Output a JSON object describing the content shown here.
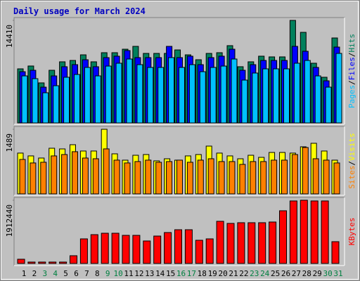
{
  "chart_data": [
    {
      "type": "bar",
      "title": "Daily usage for March 2024",
      "legend_separator": "/",
      "ylim": [
        0,
        14410
      ],
      "yticks": [
        14410
      ],
      "series": [
        {
          "name": "Pages",
          "color": "#00c0ff",
          "values": [
            6610,
            6220,
            4240,
            5230,
            6420,
            6810,
            7800,
            6610,
            7990,
            8390,
            8980,
            8190,
            7800,
            7800,
            9180,
            7800,
            8190,
            7200,
            7800,
            7990,
            8980,
            6020,
            7010,
            7600,
            7600,
            7600,
            8390,
            8780,
            6610,
            5030,
            9770
          ]
        },
        {
          "name": "Files",
          "color": "#0000ff",
          "values": [
            7200,
            7400,
            5030,
            6610,
            7900,
            8190,
            8880,
            7900,
            9180,
            9380,
            10170,
            9180,
            9180,
            9180,
            10760,
            9180,
            9380,
            8190,
            9180,
            9380,
            10360,
            7400,
            8190,
            8780,
            8780,
            8780,
            10760,
            10070,
            7800,
            5920,
            10660
          ]
        },
        {
          "name": "Hits",
          "color": "#00805c",
          "values": [
            7600,
            8000,
            5630,
            7400,
            8590,
            8780,
            9570,
            8590,
            9870,
            9870,
            10360,
            10760,
            9770,
            9770,
            9770,
            10260,
            9570,
            8880,
            9770,
            9870,
            10860,
            7900,
            8590,
            9380,
            9280,
            9280,
            14410,
            12730,
            8390,
            6420,
            11940
          ]
        }
      ]
    },
    {
      "type": "bar",
      "legend_separator": "/",
      "ylim": [
        0,
        1489
      ],
      "yticks": [
        1489
      ],
      "series": [
        {
          "name": "Sites",
          "color": "#ff8000",
          "values": [
            794,
            713,
            729,
            875,
            907,
            972,
            826,
            810,
            1037,
            778,
            713,
            745,
            778,
            729,
            745,
            778,
            729,
            778,
            810,
            745,
            745,
            680,
            745,
            745,
            778,
            778,
            907,
            1069,
            810,
            778,
            713
          ]
        },
        {
          "name": "Visits",
          "color": "#ffff00",
          "values": [
            940,
            875,
            826,
            1052,
            1036,
            1133,
            988,
            988,
            1489,
            923,
            777,
            890,
            907,
            761,
            809,
            777,
            875,
            907,
            1101,
            940,
            875,
            809,
            890,
            842,
            955,
            955,
            940,
            1085,
            1166,
            988,
            777
          ]
        }
      ]
    },
    {
      "type": "bar",
      "ylim": [
        0,
        1912440
      ],
      "yticks": [
        1912440
      ],
      "categories": [
        "1",
        "2",
        "3",
        "4",
        "5",
        "6",
        "7",
        "8",
        "9",
        "10",
        "11",
        "12",
        "13",
        "14",
        "15",
        "16",
        "17",
        "18",
        "19",
        "20",
        "21",
        "22",
        "23",
        "24",
        "25",
        "26",
        "27",
        "28",
        "29",
        "30",
        "31"
      ],
      "category_colors": [
        "#000000",
        "#000000",
        "#008040",
        "#008040",
        "#000000",
        "#000000",
        "#000000",
        "#000000",
        "#008040",
        "#008040",
        "#000000",
        "#000000",
        "#000000",
        "#000000",
        "#000000",
        "#008040",
        "#008040",
        "#000000",
        "#000000",
        "#000000",
        "#000000",
        "#000000",
        "#008040",
        "#008040",
        "#000000",
        "#000000",
        "#000000",
        "#000000",
        "#000000",
        "#008040",
        "#008040"
      ],
      "series": [
        {
          "name": "KBytes",
          "color": "#ff0000",
          "values": [
            127500,
            42500,
            42500,
            42500,
            42500,
            233700,
            743700,
            871200,
            913700,
            913700,
            850000,
            850000,
            680000,
            828700,
            935000,
            1020000,
            1020000,
            701200,
            743700,
            1274900,
            1211200,
            1232400,
            1232400,
            1232400,
            1253700,
            1593700,
            1891200,
            1912440,
            1891200,
            1891200,
            658700
          ]
        }
      ]
    }
  ]
}
